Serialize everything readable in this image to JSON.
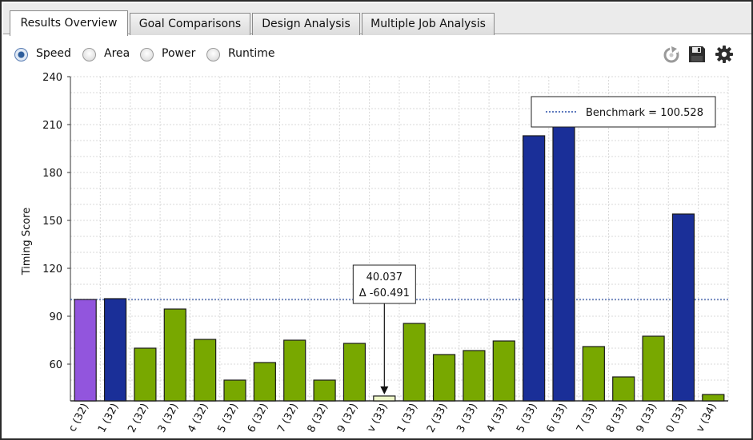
{
  "tabs": [
    {
      "label": "Results Overview",
      "active": true
    },
    {
      "label": "Goal Comparisons",
      "active": false
    },
    {
      "label": "Design Analysis",
      "active": false
    },
    {
      "label": "Multiple Job Analysis",
      "active": false
    }
  ],
  "metrics": [
    {
      "label": "Speed",
      "checked": true
    },
    {
      "label": "Area",
      "checked": false
    },
    {
      "label": "Power",
      "checked": false
    },
    {
      "label": "Runtime",
      "checked": false
    }
  ],
  "toolbar": {
    "icons": [
      "refresh-icon",
      "save-icon",
      "gear-icon"
    ]
  },
  "chart_data": {
    "type": "bar",
    "ylabel": "Timing Score",
    "y_ticks": [
      60,
      90,
      120,
      150,
      180,
      210,
      240
    ],
    "ylim": [
      37,
      240
    ],
    "categories": [
      "c (32)",
      "1 (32)",
      "2 (32)",
      "3 (32)",
      "4 (32)",
      "5 (32)",
      "6 (32)",
      "7 (32)",
      "8 (32)",
      "9 (32)",
      "v (33)",
      "1 (33)",
      "2 (33)",
      "3 (33)",
      "4 (33)",
      "5 (33)",
      "6 (33)",
      "7 (33)",
      "8 (33)",
      "9 (33)",
      "0 (33)",
      "v (34)"
    ],
    "values": [
      100.5,
      101,
      70,
      94.5,
      75.5,
      50,
      61,
      75,
      50,
      73,
      40.037,
      85.5,
      66,
      68.5,
      74.5,
      203,
      216,
      71,
      52,
      77.5,
      154,
      41
    ],
    "bar_colors": [
      "#9255dd",
      "#1a2f98",
      "#78a800",
      "#78a800",
      "#78a800",
      "#78a800",
      "#78a800",
      "#78a800",
      "#78a800",
      "#78a800",
      "#eef7c8",
      "#78a800",
      "#78a800",
      "#78a800",
      "#78a800",
      "#1a2f98",
      "#1a2f98",
      "#78a800",
      "#78a800",
      "#78a800",
      "#1a2f98",
      "#78a800"
    ],
    "benchmark": {
      "value": 100.528,
      "label": "Benchmark = 100.528",
      "color": "#2a4ea8"
    },
    "annotation": {
      "index": 10,
      "line1": "40.037",
      "line2": "Δ -60.491"
    },
    "grid": true,
    "legend_position": "top-right"
  }
}
